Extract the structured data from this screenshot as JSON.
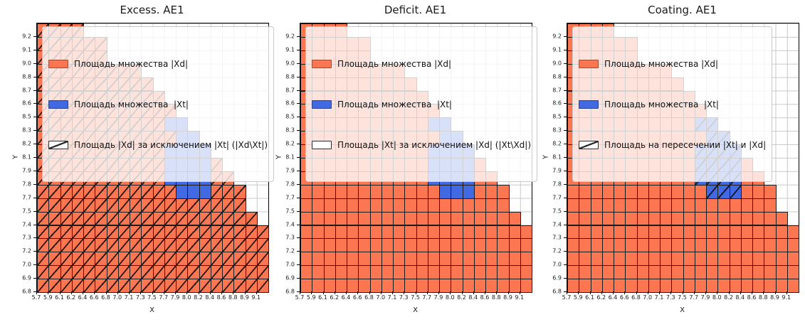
{
  "chart_data": {
    "type": "heatmap",
    "grid": {
      "rows": 20,
      "cols": 20
    },
    "xlabel": "X",
    "ylabel": "Y",
    "x_ticks": [
      "5.7",
      "5.9",
      "6.1",
      "6.2",
      "6.4",
      "6.6",
      "6.8",
      "7.0",
      "7.1",
      "7.3",
      "7.5",
      "7.7",
      "7.9",
      "8.0",
      "8.2",
      "8.4",
      "8.6",
      "8.8",
      "8.9",
      "9.1"
    ],
    "y_ticks_top_to_bottom": [
      "9.2",
      "9.1",
      "9.0",
      "8.8",
      "8.7",
      "8.6",
      "8.5",
      "8.3",
      "8.2",
      "8.1",
      "7.9",
      "7.8",
      "7.7",
      "7.5",
      "7.4",
      "7.3",
      "7.2",
      "7.0",
      "6.9",
      "6.8"
    ],
    "orange_row_extents": [
      3,
      5,
      5,
      8,
      9,
      10,
      11,
      12,
      13,
      14,
      15,
      16,
      17,
      17,
      18,
      19,
      19,
      19,
      19,
      19
    ],
    "blue_cells": [
      [
        7,
        11
      ],
      [
        7,
        12
      ],
      [
        8,
        12
      ],
      [
        8,
        13
      ],
      [
        9,
        11
      ],
      [
        9,
        12
      ],
      [
        9,
        13
      ],
      [
        9,
        14
      ],
      [
        10,
        11
      ],
      [
        10,
        12
      ],
      [
        10,
        13
      ],
      [
        10,
        14
      ],
      [
        11,
        11
      ],
      [
        11,
        12
      ],
      [
        11,
        13
      ],
      [
        11,
        14
      ],
      [
        12,
        12
      ],
      [
        12,
        13
      ],
      [
        12,
        14
      ]
    ],
    "colors": {
      "orange": "#FB7651",
      "blue": "#4169E1",
      "cell_edge": "#1c1c1c",
      "grid_line": "#c8c8c8"
    },
    "plots": [
      {
        "title": "Excess. AE1",
        "hatched_region": "orange",
        "legend": [
          {
            "patch": "fill-orange",
            "label": "Площадь множества |Xd|"
          },
          {
            "patch": "fill-blue",
            "label": "Площадь множества  |Xt|"
          },
          {
            "patch": "hatch",
            "label": "Площадь |Xd| за исключением |Xt| (|Xd\\Xt|)"
          }
        ]
      },
      {
        "title": "Deficit. AE1",
        "hatched_region": "none",
        "legend": [
          {
            "patch": "fill-orange",
            "label": "Площадь множества |Xd|"
          },
          {
            "patch": "fill-blue",
            "label": "Площадь множества  |Xt|"
          },
          {
            "patch": "outline",
            "label": "Площадь |Xt| за исключением |Xd| (|Xt\\Xd|)"
          }
        ]
      },
      {
        "title": "Coating. AE1",
        "hatched_region": "blue",
        "legend": [
          {
            "patch": "fill-orange",
            "label": "Площадь множества |Xd|"
          },
          {
            "patch": "fill-blue",
            "label": "Площадь множества  |Xt|"
          },
          {
            "patch": "hatch",
            "label": "Площадь на пересечении |Xt| и |Xd|"
          }
        ]
      }
    ]
  }
}
